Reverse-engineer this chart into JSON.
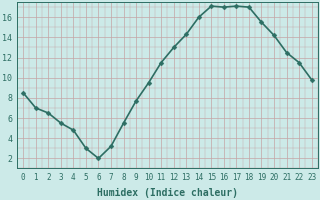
{
  "x": [
    0,
    1,
    2,
    3,
    4,
    5,
    6,
    7,
    8,
    9,
    10,
    11,
    12,
    13,
    14,
    15,
    16,
    17,
    18,
    19,
    20,
    21,
    22,
    23
  ],
  "y": [
    8.5,
    7.0,
    6.5,
    5.5,
    4.8,
    3.0,
    2.0,
    3.2,
    5.5,
    7.7,
    9.5,
    11.5,
    13.0,
    14.3,
    16.0,
    17.1,
    17.0,
    17.1,
    17.0,
    15.5,
    14.2,
    12.5,
    11.5,
    9.8
  ],
  "line_color": "#2d6e63",
  "marker": "D",
  "marker_size": 2.5,
  "bg_color": "#cceae8",
  "grid_color_major": "#c4a5a5",
  "grid_color_minor": "#c4a5a5",
  "xlabel": "Humidex (Indice chaleur)",
  "xlim": [
    -0.5,
    23.5
  ],
  "ylim": [
    1.0,
    17.5
  ],
  "yticks": [
    2,
    4,
    6,
    8,
    10,
    12,
    14,
    16
  ],
  "xticks": [
    0,
    1,
    2,
    3,
    4,
    5,
    6,
    7,
    8,
    9,
    10,
    11,
    12,
    13,
    14,
    15,
    16,
    17,
    18,
    19,
    20,
    21,
    22,
    23
  ],
  "xtick_labels": [
    "0",
    "1",
    "2",
    "3",
    "4",
    "5",
    "6",
    "7",
    "8",
    "9",
    "10",
    "11",
    "12",
    "13",
    "14",
    "15",
    "16",
    "17",
    "18",
    "19",
    "20",
    "21",
    "22",
    "23"
  ],
  "tick_fontsize": 5.5,
  "xlabel_fontsize": 7.0,
  "line_width": 1.2,
  "axis_color": "#2d6e63"
}
